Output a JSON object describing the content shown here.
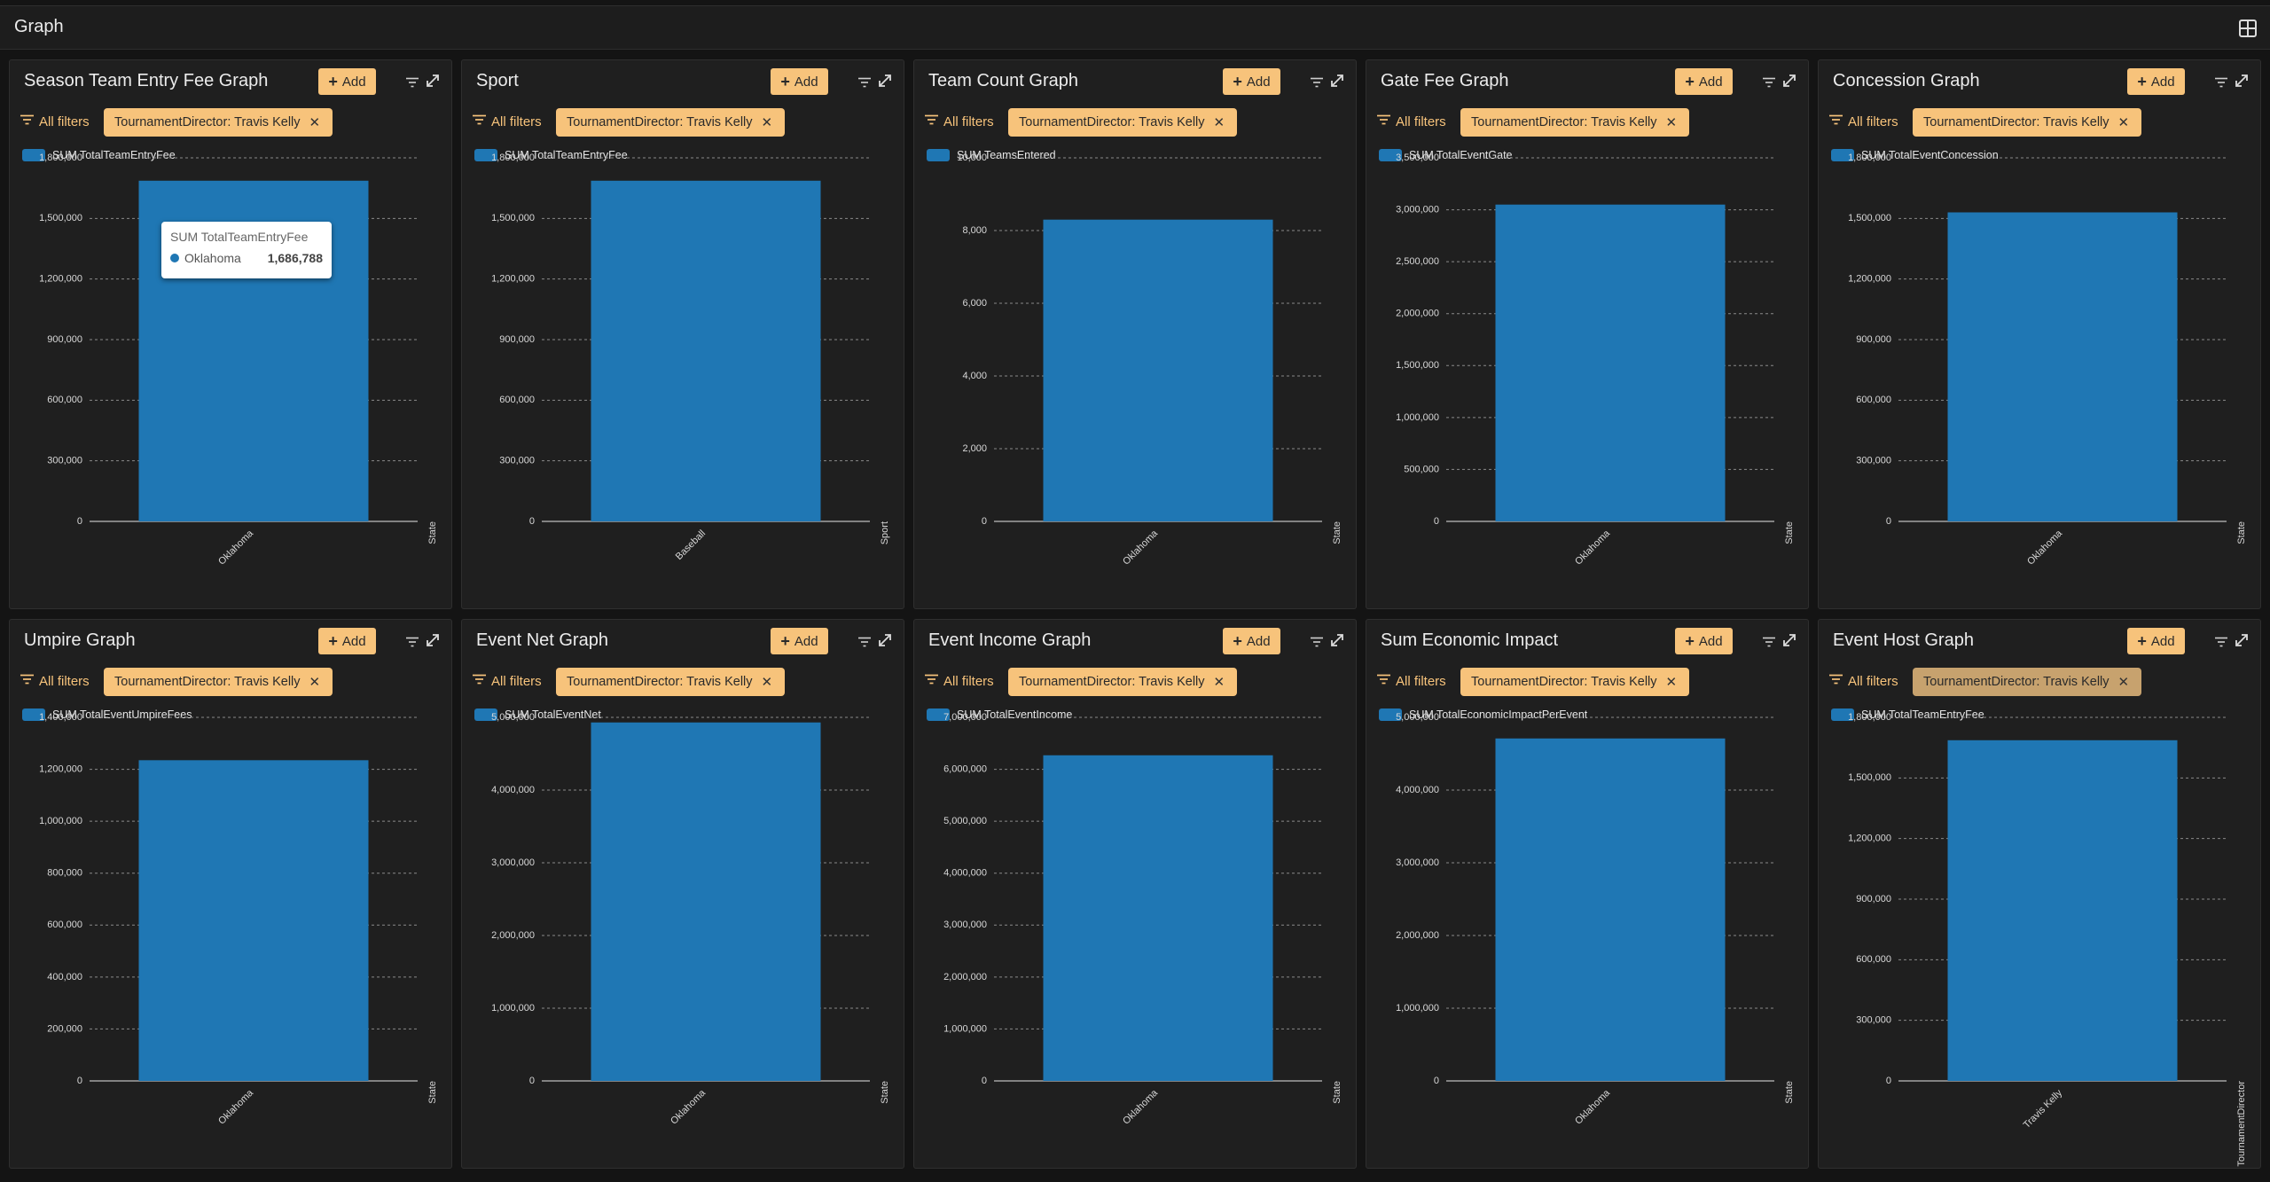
{
  "page": {
    "title": "Graph"
  },
  "accent": "#f7c37b",
  "bar_color": "#1f77b4",
  "common": {
    "add_label": "Add",
    "all_filters_label": "All filters"
  },
  "panels": [
    {
      "title": "Season Team Entry Fee Graph",
      "chip": "TournamentDirector: Travis Kelly",
      "legend": "SUM TotalTeamEntryFee"
    },
    {
      "title": "Sport",
      "chip": "TournamentDirector: Travis Kelly",
      "legend": "SUM TotalTeamEntryFee"
    },
    {
      "title": "Team Count Graph",
      "chip": "TournamentDirector: Travis Kelly",
      "legend": "SUM TeamsEntered"
    },
    {
      "title": "Gate Fee Graph",
      "chip": "TournamentDirector: Travis Kelly",
      "legend": "SUM TotalEventGate"
    },
    {
      "title": "Concession Graph",
      "chip": "TournamentDirector: Travis Kelly",
      "legend": "SUM TotalEventConcession"
    },
    {
      "title": "Umpire Graph",
      "chip": "TournamentDirector: Travis Kelly",
      "legend": "SUM TotalEventUmpireFees"
    },
    {
      "title": "Event Net Graph",
      "chip": "TournamentDirector: Travis Kelly",
      "legend": "SUM TotalEventNet"
    },
    {
      "title": "Event Income Graph",
      "chip": "TournamentDirector: Travis Kelly",
      "legend": "SUM TotalEventIncome"
    },
    {
      "title": "Sum Economic Impact",
      "chip": "TournamentDirector: Travis Kelly",
      "legend": "SUM TotalEconomicImpactPerEvent"
    },
    {
      "title": "Event Host Graph",
      "chip": "TournamentDirector: Travis Kelly",
      "legend": "SUM TotalTeamEntryFee"
    }
  ],
  "tooltip": {
    "series": "SUM TotalTeamEntryFee",
    "category": "Oklahoma",
    "value": "1,686,788"
  },
  "chart_data": [
    {
      "type": "bar",
      "categories": [
        "Oklahoma"
      ],
      "values": [
        1686788
      ],
      "xlabel": "State",
      "yticks": [
        0,
        300000,
        600000,
        900000,
        1200000,
        1500000,
        1800000
      ],
      "ytick_labels": [
        "0",
        "300,000",
        "600,000",
        "900,000",
        "1,200,000",
        "1,500,000",
        "1,800,000"
      ],
      "ylim": [
        0,
        1800000
      ],
      "series": [
        {
          "name": "SUM TotalTeamEntryFee",
          "values": [
            1686788
          ]
        }
      ]
    },
    {
      "type": "bar",
      "categories": [
        "Baseball"
      ],
      "values": [
        1686788
      ],
      "xlabel": "Sport",
      "yticks": [
        0,
        300000,
        600000,
        900000,
        1200000,
        1500000,
        1800000
      ],
      "ytick_labels": [
        "0",
        "300,000",
        "600,000",
        "900,000",
        "1,200,000",
        "1,500,000",
        "1,800,000"
      ],
      "ylim": [
        0,
        1800000
      ],
      "series": [
        {
          "name": "SUM TotalTeamEntryFee",
          "values": [
            1686788
          ]
        }
      ]
    },
    {
      "type": "bar",
      "categories": [
        "Oklahoma"
      ],
      "values": [
        8300
      ],
      "xlabel": "State",
      "yticks": [
        0,
        2000,
        4000,
        6000,
        8000,
        10000
      ],
      "ytick_labels": [
        "0",
        "2,000",
        "4,000",
        "6,000",
        "8,000",
        "10,000"
      ],
      "ylim": [
        0,
        10000
      ],
      "series": [
        {
          "name": "SUM TeamsEntered",
          "values": [
            8300
          ]
        }
      ]
    },
    {
      "type": "bar",
      "categories": [
        "Oklahoma"
      ],
      "values": [
        3050000
      ],
      "xlabel": "State",
      "yticks": [
        0,
        500000,
        1000000,
        1500000,
        2000000,
        2500000,
        3000000,
        3500000
      ],
      "ytick_labels": [
        "0",
        "500,000",
        "1,000,000",
        "1,500,000",
        "2,000,000",
        "2,500,000",
        "3,000,000",
        "3,500,000"
      ],
      "ylim": [
        0,
        3500000
      ],
      "series": [
        {
          "name": "SUM TotalEventGate",
          "values": [
            3050000
          ]
        }
      ]
    },
    {
      "type": "bar",
      "categories": [
        "Oklahoma"
      ],
      "values": [
        1530000
      ],
      "xlabel": "State",
      "yticks": [
        0,
        300000,
        600000,
        900000,
        1200000,
        1500000,
        1800000
      ],
      "ytick_labels": [
        "0",
        "300,000",
        "600,000",
        "900,000",
        "1,200,000",
        "1,500,000",
        "1,800,000"
      ],
      "ylim": [
        0,
        1800000
      ],
      "series": [
        {
          "name": "SUM TotalEventConcession",
          "values": [
            1530000
          ]
        }
      ]
    },
    {
      "type": "bar",
      "categories": [
        "Oklahoma"
      ],
      "values": [
        1235000
      ],
      "xlabel": "State",
      "yticks": [
        0,
        200000,
        400000,
        600000,
        800000,
        1000000,
        1200000,
        1400000
      ],
      "ytick_labels": [
        "0",
        "200,000",
        "400,000",
        "600,000",
        "800,000",
        "1,000,000",
        "1,200,000",
        "1,400,000"
      ],
      "ylim": [
        0,
        1400000
      ],
      "series": [
        {
          "name": "SUM TotalEventUmpireFees",
          "values": [
            1235000
          ]
        }
      ]
    },
    {
      "type": "bar",
      "categories": [
        "Oklahoma"
      ],
      "values": [
        4930000
      ],
      "xlabel": "State",
      "yticks": [
        0,
        1000000,
        2000000,
        3000000,
        4000000,
        5000000
      ],
      "ytick_labels": [
        "0",
        "1,000,000",
        "2,000,000",
        "3,000,000",
        "4,000,000",
        "5,000,000"
      ],
      "ylim": [
        0,
        5000000
      ],
      "series": [
        {
          "name": "SUM TotalEventNet",
          "values": [
            4930000
          ]
        }
      ]
    },
    {
      "type": "bar",
      "categories": [
        "Oklahoma"
      ],
      "values": [
        6270000
      ],
      "xlabel": "State",
      "yticks": [
        0,
        1000000,
        2000000,
        3000000,
        4000000,
        5000000,
        6000000,
        7000000
      ],
      "ytick_labels": [
        "0",
        "1,000,000",
        "2,000,000",
        "3,000,000",
        "4,000,000",
        "5,000,000",
        "6,000,000",
        "7,000,000"
      ],
      "ylim": [
        0,
        7000000
      ],
      "series": [
        {
          "name": "SUM TotalEventIncome",
          "values": [
            6270000
          ]
        }
      ]
    },
    {
      "type": "bar",
      "categories": [
        "Oklahoma"
      ],
      "values": [
        4710000
      ],
      "xlabel": "State",
      "yticks": [
        0,
        1000000,
        2000000,
        3000000,
        4000000,
        5000000
      ],
      "ytick_labels": [
        "0",
        "1,000,000",
        "2,000,000",
        "3,000,000",
        "4,000,000",
        "5,000,000"
      ],
      "ylim": [
        0,
        5000000
      ],
      "series": [
        {
          "name": "SUM TotalEconomicImpactPerEvent",
          "values": [
            4710000
          ]
        }
      ]
    },
    {
      "type": "bar",
      "categories": [
        "Travis Kelly"
      ],
      "values": [
        1686788
      ],
      "xlabel": "TournamentDirector",
      "yticks": [
        0,
        300000,
        600000,
        900000,
        1200000,
        1500000,
        1800000
      ],
      "ytick_labels": [
        "0",
        "300,000",
        "600,000",
        "900,000",
        "1,200,000",
        "1,500,000",
        "1,800,000"
      ],
      "ylim": [
        0,
        1800000
      ],
      "series": [
        {
          "name": "SUM TotalTeamEntryFee",
          "values": [
            1686788
          ]
        }
      ]
    }
  ]
}
